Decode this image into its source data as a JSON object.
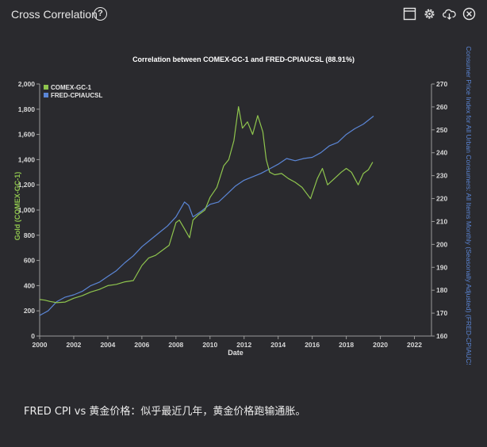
{
  "header": {
    "title": "Cross Correlation",
    "help_glyph": "?",
    "icons": [
      "window-icon",
      "gear-icon",
      "cloud-download-icon",
      "close-icon"
    ]
  },
  "caption": "FRED CPI vs 黄金价格：似乎最近几年，黄金价格跑输通胀。",
  "colors": {
    "background": "#2a2a2e",
    "gold_series": "#8fc54e",
    "cpi_series": "#5b86d6",
    "axis_text": "#d8d8d8"
  },
  "chart_data": {
    "type": "line",
    "title": "Correlation between COMEX-GC-1 and FRED-CPIAUCSL (88.91%)",
    "xlabel": "Date",
    "ylabel_left": "Gold (COMEX-GC-1)",
    "ylabel_right": "Consumer Price Index for All Urban Consumers: All Items Monthly (Seasonally Adjusted) (FRED-CPIAUCSL)",
    "xlim": [
      2000,
      2023
    ],
    "ylim_left": [
      0,
      2000
    ],
    "ylim_right": [
      160,
      270
    ],
    "x_ticks": [
      "2000",
      "2002",
      "2004",
      "2006",
      "2008",
      "2010",
      "2012",
      "2014",
      "2016",
      "2018",
      "2020",
      "2022"
    ],
    "y_left_ticks": [
      "0",
      "200",
      "400",
      "600",
      "800",
      "1,000",
      "1,200",
      "1,400",
      "1,600",
      "1,800",
      "2,000"
    ],
    "y_right_ticks": [
      "160",
      "170",
      "180",
      "190",
      "200",
      "210",
      "220",
      "230",
      "240",
      "250",
      "260",
      "270"
    ],
    "legend_position": "top-left",
    "series": [
      {
        "name": "COMEX-GC-1",
        "axis": "left",
        "x": [
          2000,
          2000.3,
          2000.6,
          2001,
          2001.5,
          2002,
          2002.5,
          2003,
          2003.5,
          2004,
          2004.5,
          2005,
          2005.5,
          2006,
          2006.4,
          2006.8,
          2007.2,
          2007.6,
          2008,
          2008.2,
          2008.5,
          2008.8,
          2009,
          2009.3,
          2009.7,
          2010,
          2010.4,
          2010.8,
          2011.1,
          2011.4,
          2011.67,
          2011.9,
          2012.2,
          2012.5,
          2012.8,
          2013.1,
          2013.3,
          2013.5,
          2013.8,
          2014.2,
          2014.6,
          2015,
          2015.4,
          2015.9,
          2016.3,
          2016.6,
          2016.9,
          2017.3,
          2017.7,
          2018,
          2018.3,
          2018.7,
          2019,
          2019.3,
          2019.55
        ],
        "values": [
          290,
          285,
          275,
          265,
          270,
          300,
          320,
          350,
          370,
          400,
          410,
          430,
          440,
          560,
          620,
          640,
          680,
          720,
          900,
          920,
          850,
          780,
          920,
          960,
          1000,
          1100,
          1180,
          1350,
          1400,
          1550,
          1820,
          1650,
          1700,
          1600,
          1750,
          1620,
          1400,
          1300,
          1280,
          1290,
          1250,
          1220,
          1180,
          1090,
          1250,
          1330,
          1200,
          1250,
          1300,
          1330,
          1300,
          1200,
          1290,
          1320,
          1380
        ]
      },
      {
        "name": "FRED-CPIAUCSL",
        "axis": "right",
        "x": [
          2000,
          2000.5,
          2001,
          2001.5,
          2002,
          2002.5,
          2003,
          2003.5,
          2004,
          2004.5,
          2005,
          2005.5,
          2006,
          2006.5,
          2007,
          2007.5,
          2008,
          2008.5,
          2008.75,
          2009,
          2009.5,
          2010,
          2010.5,
          2011,
          2011.5,
          2012,
          2012.5,
          2013,
          2013.5,
          2014,
          2014.5,
          2015,
          2015.5,
          2016,
          2016.5,
          2017,
          2017.5,
          2018,
          2018.5,
          2019,
          2019.6
        ],
        "values": [
          169,
          171,
          175,
          177,
          178,
          179.5,
          182,
          183.5,
          186,
          188.5,
          192,
          195,
          199,
          202,
          205,
          208,
          212,
          218.5,
          217,
          212,
          214.5,
          217.5,
          218.5,
          222,
          225.5,
          228,
          229.5,
          231,
          233,
          235,
          237.5,
          236.5,
          237.5,
          238,
          240,
          243,
          244.5,
          248,
          250.5,
          252.5,
          256
        ]
      }
    ]
  }
}
